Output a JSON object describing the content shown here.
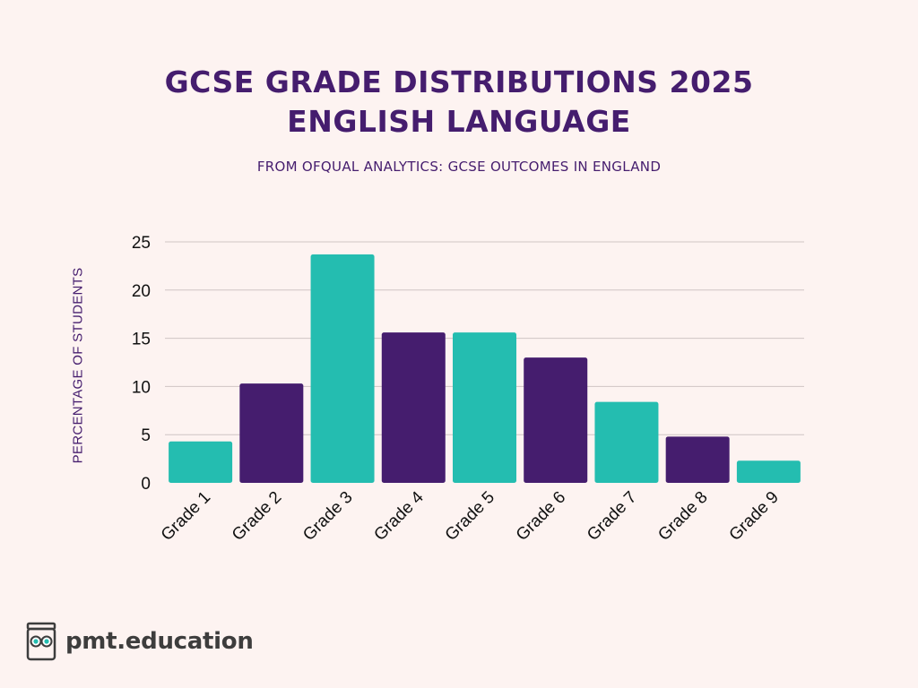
{
  "header": {
    "title_line1": "GCSE GRADE DISTRIBUTIONS 2025",
    "title_line2": "ENGLISH LANGUAGE",
    "subtitle": "FROM OFQUAL ANALYTICS: GCSE OUTCOMES IN ENGLAND"
  },
  "chart_data": {
    "type": "bar",
    "title": "GCSE GRADE DISTRIBUTIONS 2025 ENGLISH LANGUAGE",
    "subtitle": "FROM OFQUAL ANALYTICS: GCSE OUTCOMES IN ENGLAND",
    "xlabel": "",
    "ylabel": "PERCENTAGE OF STUDENTS",
    "categories": [
      "Grade 1",
      "Grade 2",
      "Grade 3",
      "Grade 4",
      "Grade 5",
      "Grade 6",
      "Grade 7",
      "Grade 8",
      "Grade 9"
    ],
    "values": [
      4.3,
      10.3,
      23.7,
      15.6,
      15.6,
      13.0,
      8.4,
      4.8,
      2.3
    ],
    "ylim": [
      0,
      25
    ],
    "yticks": [
      "0",
      "5",
      "10",
      "15",
      "20",
      "25"
    ],
    "grid": true,
    "legend": "none",
    "colors": [
      "#24bdb0",
      "#451d6e"
    ]
  },
  "brand": {
    "name": "pmt.education",
    "icon": "reading-student-icon"
  }
}
